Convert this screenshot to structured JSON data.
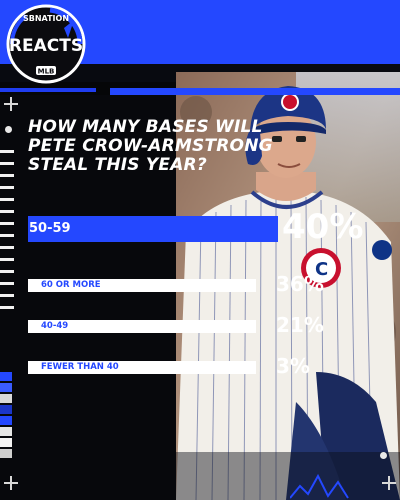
{
  "brand": {
    "top_text": "SBNATION",
    "name": "REACTS",
    "league": "MLB",
    "accent": "#2448ff"
  },
  "chart_data": {
    "type": "bar",
    "title": "HOW MANY BASES WILL PETE CROW-ARMSTRONG STEAL THIS YEAR?",
    "title_lines": [
      "HOW MANY BASES WILL",
      "PETE CROW-ARMSTRONG",
      "STEAL THIS YEAR?"
    ],
    "orientation": "horizontal",
    "unit": "%",
    "xlim": [
      0,
      40
    ],
    "highlight_index": 0,
    "highlight_color": "#2448ff",
    "bar_color": "#ffffff",
    "items": [
      {
        "label": "50-59",
        "value": 40,
        "display": "40%"
      },
      {
        "label": "60 OR MORE",
        "value": 36,
        "display": "36%"
      },
      {
        "label": "40-49",
        "value": 21,
        "display": "21%"
      },
      {
        "label": "FEWER THAN 40",
        "value": 3,
        "display": "3%"
      }
    ]
  }
}
